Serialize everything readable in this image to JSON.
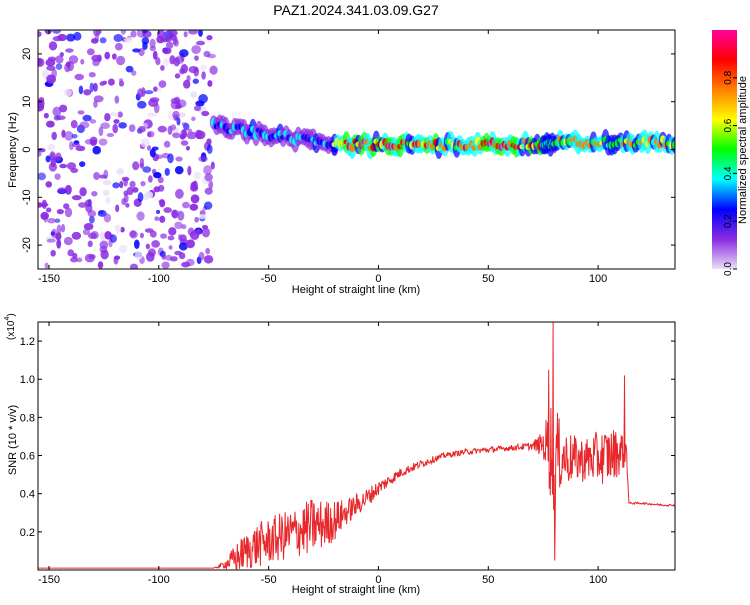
{
  "title": "PAZ1.2024.341.03.09.G27",
  "chart_data": [
    {
      "type": "heatmap",
      "title": "PAZ1.2024.341.03.09.G27",
      "xlabel": "Height of straight line (km)",
      "ylabel": "Frequency (Hz)",
      "xlim": [
        -155,
        135
      ],
      "ylim": [
        -25,
        25
      ],
      "xticks": [
        -150,
        -100,
        -50,
        0,
        50,
        100
      ],
      "yticks": [
        -20,
        -10,
        0,
        10,
        20
      ],
      "colorbar": {
        "label": "Normalized spectral amplitude",
        "range": [
          0,
          1
        ],
        "ticks": [
          "0.0",
          "0.2",
          "0.4",
          "0.6",
          "0.8"
        ],
        "colormap": [
          "#e8e0f8",
          "#8a2be2",
          "#0000ff",
          "#00ffff",
          "#00ff00",
          "#ffff00",
          "#ff8000",
          "#ff0000",
          "#ff00a0"
        ]
      },
      "regions": [
        {
          "x_range": [
            -155,
            -75
          ],
          "y_range": [
            -25,
            25
          ],
          "amplitude": 0.1,
          "description": "noise"
        },
        {
          "x_range": [
            -75,
            -20
          ],
          "center_freq": 5,
          "center_freq_end": 1,
          "amplitude": 0.3
        },
        {
          "x_range": [
            -20,
            75
          ],
          "center_freq": 1,
          "amplitude": 0.75
        },
        {
          "x_range": [
            75,
            80
          ],
          "center_freq": 1,
          "amplitude": 0.45
        },
        {
          "x_range": [
            80,
            135
          ],
          "center_freq": 1.5,
          "amplitude": 0.6
        }
      ]
    },
    {
      "type": "line",
      "xlabel": "Height of straight line (km)",
      "ylabel": "SNR (10 * v/v)",
      "y_multiplier": "(x10",
      "y_multiplier_exp": "4",
      "xlim": [
        -155,
        135
      ],
      "ylim": [
        0,
        13000
      ],
      "xticks": [
        -150,
        -100,
        -50,
        0,
        50,
        100
      ],
      "yticks": [
        0.2,
        0.4,
        0.6,
        0.8,
        1.0,
        1.2
      ],
      "color": "#e8272b",
      "envelope": {
        "x": [
          -155,
          -75,
          -70,
          -65,
          -60,
          -55,
          -50,
          -45,
          -40,
          -35,
          -30,
          -25,
          -20,
          -15,
          -10,
          -5,
          0,
          5,
          10,
          20,
          30,
          40,
          50,
          60,
          70,
          75,
          78,
          80,
          82,
          85,
          90,
          95,
          100,
          105,
          110,
          113,
          114,
          115,
          120,
          130,
          135
        ],
        "y": [
          100,
          100,
          300,
          600,
          1000,
          1300,
          1500,
          1700,
          1900,
          2100,
          2300,
          2400,
          2600,
          3000,
          3400,
          3800,
          4300,
          4700,
          5100,
          5600,
          6000,
          6200,
          6300,
          6400,
          6500,
          6600,
          6400,
          6200,
          6000,
          5900,
          5800,
          5800,
          5900,
          6000,
          6200,
          6300,
          3500,
          3500,
          3500,
          3400,
          3400
        ],
        "amp": [
          0,
          0,
          200,
          800,
          1000,
          1200,
          1200,
          1300,
          1300,
          1400,
          1500,
          1300,
          1100,
          700,
          600,
          500,
          400,
          300,
          250,
          200,
          150,
          150,
          150,
          150,
          200,
          700,
          2500,
          3500,
          2000,
          1500,
          1200,
          1200,
          1400,
          1500,
          1200,
          800,
          50,
          50,
          50,
          50,
          50
        ]
      },
      "peaks": [
        {
          "x": 79.5,
          "y": 13000
        },
        {
          "x": 77.5,
          "y": 10500
        },
        {
          "x": 80.2,
          "y": 500
        },
        {
          "x": 112,
          "y": 10200
        }
      ]
    }
  ]
}
